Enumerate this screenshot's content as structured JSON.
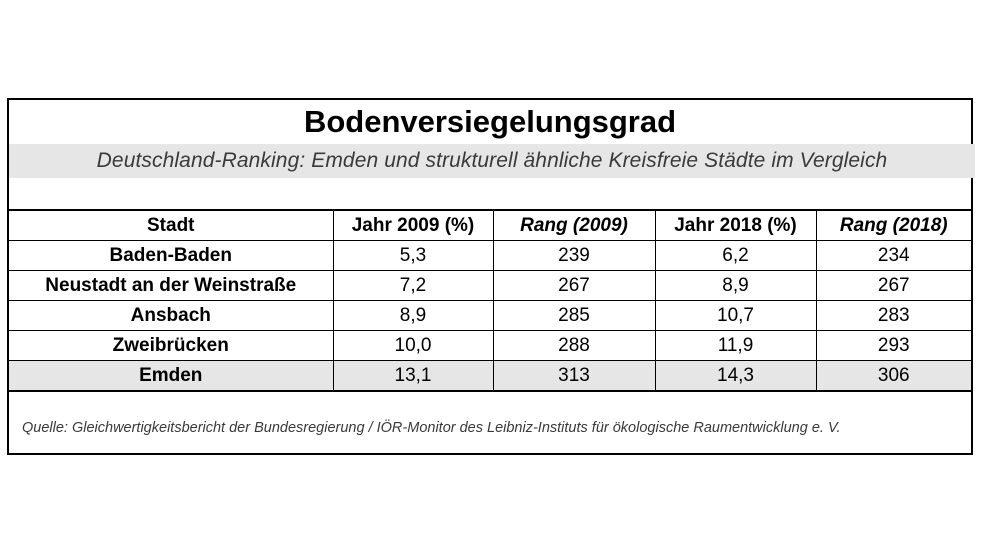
{
  "title": "Bodenversiegelungsgrad",
  "subtitle": "Deutschland-Ranking: Emden und strukturell ähnliche Kreisfreie Städte im Vergleich",
  "table": {
    "headers": [
      "Stadt",
      "Jahr 2009 (%)",
      "Rang (2009)",
      "Jahr 2018 (%)",
      "Rang (2018)"
    ],
    "rows": [
      [
        "Baden-Baden",
        "5,3",
        "239",
        "6,2",
        "234"
      ],
      [
        "Neustadt an der Weinstraße",
        "7,2",
        "267",
        "8,9",
        "267"
      ],
      [
        "Ansbach",
        "8,9",
        "285",
        "10,7",
        "283"
      ],
      [
        "Zweibrücken",
        "10,0",
        "288",
        "11,9",
        "293"
      ],
      [
        "Emden",
        "13,1",
        "313",
        "14,3",
        "306"
      ]
    ],
    "highlight_row": 4
  },
  "source": "Quelle: Gleichwertigkeitsbericht der Bundesregierung / IÖR-Monitor des Leibniz-Instituts für ökologische Raumentwicklung e. V.",
  "colors": {
    "band": "#e6e6e6",
    "border": "#000000",
    "muted_text": "#3a3a3a"
  }
}
